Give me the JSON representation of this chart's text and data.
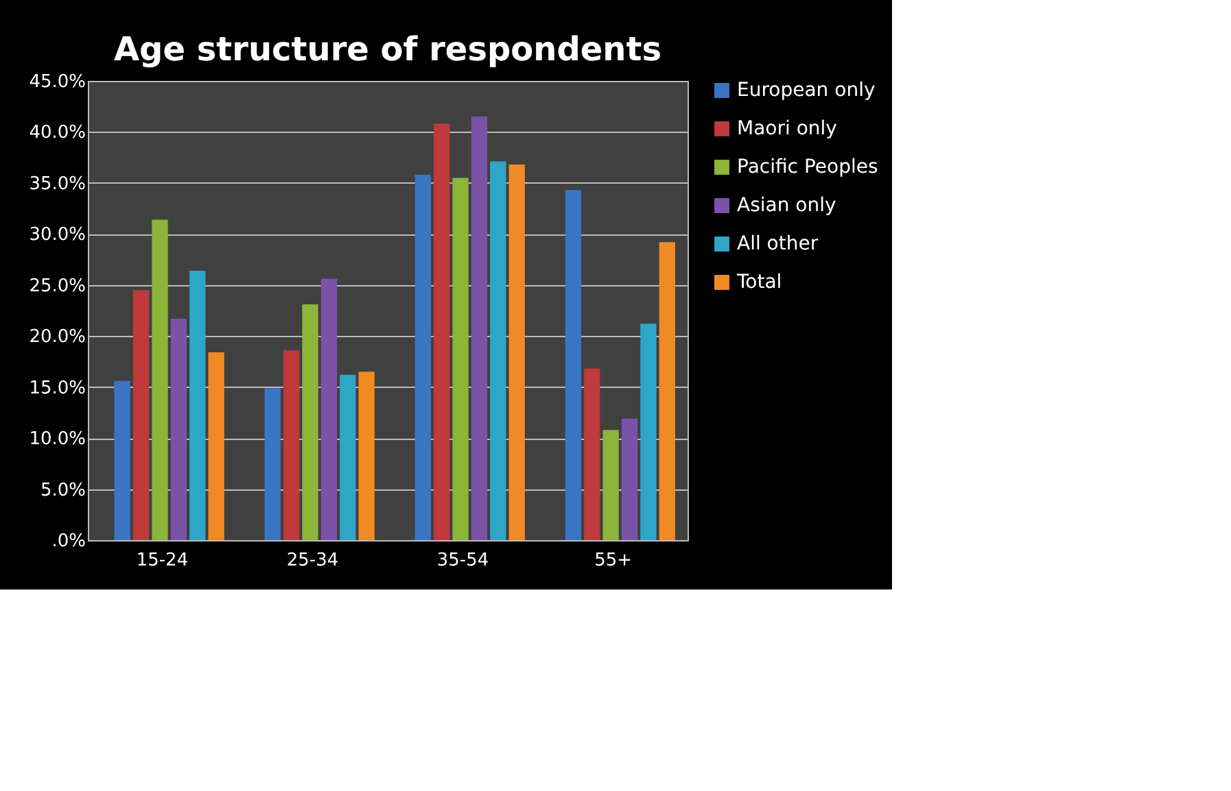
{
  "chart_data": {
    "type": "bar",
    "title": "Age structure of respondents",
    "categories": [
      "15-24",
      "25-34",
      "35-54",
      "55+"
    ],
    "series": [
      {
        "name": "European only",
        "color": "#3a75c4",
        "values": [
          15.6,
          14.9,
          35.8,
          34.3
        ]
      },
      {
        "name": "Maori only",
        "color": "#c0393b",
        "values": [
          24.5,
          18.6,
          40.8,
          16.8
        ]
      },
      {
        "name": "Pacific Peoples",
        "color": "#8db53a",
        "values": [
          31.4,
          23.1,
          35.5,
          10.8
        ]
      },
      {
        "name": "Asian only",
        "color": "#7a52a8",
        "values": [
          21.7,
          25.6,
          41.5,
          11.9
        ]
      },
      {
        "name": "All other",
        "color": "#2fa6c8",
        "values": [
          26.4,
          16.2,
          37.1,
          21.2
        ]
      },
      {
        "name": "Total",
        "color": "#f08a24",
        "values": [
          18.4,
          16.5,
          36.8,
          29.2
        ]
      }
    ],
    "ylim": [
      0,
      45
    ],
    "yticks": [
      {
        "value": 0,
        "label": ".0%"
      },
      {
        "value": 5,
        "label": "5.0%"
      },
      {
        "value": 10,
        "label": "10.0%"
      },
      {
        "value": 15,
        "label": "15.0%"
      },
      {
        "value": 20,
        "label": "20.0%"
      },
      {
        "value": 25,
        "label": "25.0%"
      },
      {
        "value": 30,
        "label": "30.0%"
      },
      {
        "value": 35,
        "label": "35.0%"
      },
      {
        "value": 40,
        "label": "40.0%"
      },
      {
        "value": 45,
        "label": "45.0%"
      }
    ],
    "grid": "y",
    "legend": "right"
  }
}
